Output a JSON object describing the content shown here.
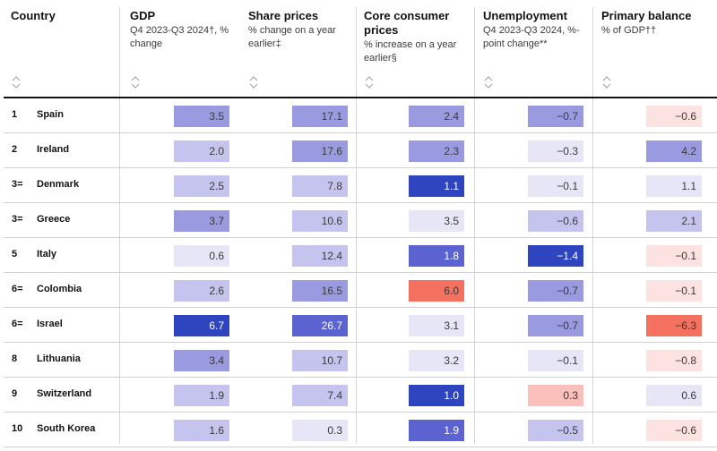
{
  "header": {
    "country": "Country",
    "columns": [
      {
        "title": "GDP",
        "sub": "Q4 2023-Q3 2024†, % change"
      },
      {
        "title": "Share prices",
        "sub": "% change on a year earlier‡"
      },
      {
        "title": "Core consumer prices",
        "sub": "% increase on a year earlier§"
      },
      {
        "title": "Unemployment",
        "sub": "Q4 2023-Q3 2024, %-point change**"
      },
      {
        "title": "Primary balance",
        "sub": "% of GDP††"
      }
    ]
  },
  "colors": {
    "blue_darkest": "#2f44bf",
    "blue_dark": "#5b63d0",
    "blue_mid": "#9a9ae0",
    "blue_light": "#c4c4ee",
    "blue_pale": "#e6e6f7",
    "red_pale": "#fde2e2",
    "red_light": "#fbc0bb",
    "red_strong": "#f4705f",
    "rule": "#d0d0d0"
  },
  "rows": [
    {
      "rank": "1",
      "country": "Spain",
      "cells": [
        {
          "v": "3.5",
          "c": "blue_mid"
        },
        {
          "v": "17.1",
          "c": "blue_mid"
        },
        {
          "v": "2.4",
          "c": "blue_mid"
        },
        {
          "v": "−0.7",
          "c": "blue_mid"
        },
        {
          "v": "−0.6",
          "c": "red_pale"
        }
      ]
    },
    {
      "rank": "2",
      "country": "Ireland",
      "cells": [
        {
          "v": "2.0",
          "c": "blue_light"
        },
        {
          "v": "17.6",
          "c": "blue_mid"
        },
        {
          "v": "2.3",
          "c": "blue_mid"
        },
        {
          "v": "−0.3",
          "c": "blue_pale"
        },
        {
          "v": "4.2",
          "c": "blue_mid"
        }
      ]
    },
    {
      "rank": "3=",
      "country": "Denmark",
      "cells": [
        {
          "v": "2.5",
          "c": "blue_light"
        },
        {
          "v": "7.8",
          "c": "blue_light"
        },
        {
          "v": "1.1",
          "c": "blue_darkest",
          "dark": true
        },
        {
          "v": "−0.1",
          "c": "blue_pale"
        },
        {
          "v": "1.1",
          "c": "blue_pale"
        }
      ]
    },
    {
      "rank": "3=",
      "country": "Greece",
      "cells": [
        {
          "v": "3.7",
          "c": "blue_mid"
        },
        {
          "v": "10.6",
          "c": "blue_light"
        },
        {
          "v": "3.5",
          "c": "blue_pale"
        },
        {
          "v": "−0.6",
          "c": "blue_light"
        },
        {
          "v": "2.1",
          "c": "blue_light"
        }
      ]
    },
    {
      "rank": "5",
      "country": "Italy",
      "cells": [
        {
          "v": "0.6",
          "c": "blue_pale"
        },
        {
          "v": "12.4",
          "c": "blue_light"
        },
        {
          "v": "1.8",
          "c": "blue_dark",
          "dark": true
        },
        {
          "v": "−1.4",
          "c": "blue_darkest",
          "dark": true
        },
        {
          "v": "−0.1",
          "c": "red_pale"
        }
      ]
    },
    {
      "rank": "6=",
      "country": "Colombia",
      "cells": [
        {
          "v": "2.6",
          "c": "blue_light"
        },
        {
          "v": "16.5",
          "c": "blue_mid"
        },
        {
          "v": "6.0",
          "c": "red_strong"
        },
        {
          "v": "−0.7",
          "c": "blue_mid"
        },
        {
          "v": "−0.1",
          "c": "red_pale"
        }
      ]
    },
    {
      "rank": "6=",
      "country": "Israel",
      "cells": [
        {
          "v": "6.7",
          "c": "blue_darkest",
          "dark": true
        },
        {
          "v": "26.7",
          "c": "blue_dark",
          "dark": true
        },
        {
          "v": "3.1",
          "c": "blue_pale"
        },
        {
          "v": "−0.7",
          "c": "blue_mid"
        },
        {
          "v": "−6.3",
          "c": "red_strong"
        }
      ]
    },
    {
      "rank": "8",
      "country": "Lithuania",
      "cells": [
        {
          "v": "3.4",
          "c": "blue_mid"
        },
        {
          "v": "10.7",
          "c": "blue_light"
        },
        {
          "v": "3.2",
          "c": "blue_pale"
        },
        {
          "v": "−0.1",
          "c": "blue_pale"
        },
        {
          "v": "−0.8",
          "c": "red_pale"
        }
      ]
    },
    {
      "rank": "9",
      "country": "Switzerland",
      "cells": [
        {
          "v": "1.9",
          "c": "blue_light"
        },
        {
          "v": "7.4",
          "c": "blue_light"
        },
        {
          "v": "1.0",
          "c": "blue_darkest",
          "dark": true
        },
        {
          "v": "0.3",
          "c": "red_light"
        },
        {
          "v": "0.6",
          "c": "blue_pale"
        }
      ]
    },
    {
      "rank": "10",
      "country": "South Korea",
      "cells": [
        {
          "v": "1.6",
          "c": "blue_light"
        },
        {
          "v": "0.3",
          "c": "blue_pale"
        },
        {
          "v": "1.9",
          "c": "blue_dark",
          "dark": true
        },
        {
          "v": "−0.5",
          "c": "blue_light"
        },
        {
          "v": "−0.6",
          "c": "red_pale"
        }
      ]
    }
  ]
}
